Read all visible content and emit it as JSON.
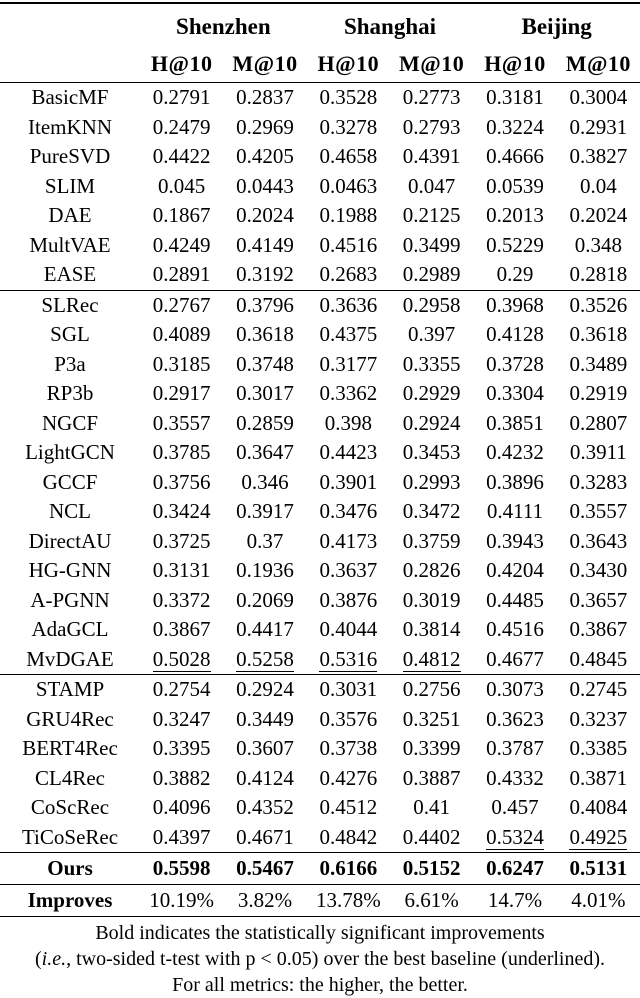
{
  "header": {
    "city_groups": [
      "Shenzhen",
      "Shanghai",
      "Beijing"
    ],
    "metrics": [
      "H@10",
      "M@10",
      "H@10",
      "M@10",
      "H@10",
      "M@10"
    ]
  },
  "table": {
    "groups": [
      {
        "rows": [
          {
            "label": "BasicMF",
            "values": [
              "0.2791",
              "0.2837",
              "0.3528",
              "0.2773",
              "0.3181",
              "0.3004"
            ],
            "underline": []
          },
          {
            "label": "ItemKNN",
            "values": [
              "0.2479",
              "0.2969",
              "0.3278",
              "0.2793",
              "0.3224",
              "0.2931"
            ],
            "underline": []
          },
          {
            "label": "PureSVD",
            "values": [
              "0.4422",
              "0.4205",
              "0.4658",
              "0.4391",
              "0.4666",
              "0.3827"
            ],
            "underline": []
          },
          {
            "label": "SLIM",
            "values": [
              "0.045",
              "0.0443",
              "0.0463",
              "0.047",
              "0.0539",
              "0.04"
            ],
            "underline": []
          },
          {
            "label": "DAE",
            "values": [
              "0.1867",
              "0.2024",
              "0.1988",
              "0.2125",
              "0.2013",
              "0.2024"
            ],
            "underline": []
          },
          {
            "label": "MultVAE",
            "values": [
              "0.4249",
              "0.4149",
              "0.4516",
              "0.3499",
              "0.5229",
              "0.348"
            ],
            "underline": []
          },
          {
            "label": "EASE",
            "values": [
              "0.2891",
              "0.3192",
              "0.2683",
              "0.2989",
              "0.29",
              "0.2818"
            ],
            "underline": []
          }
        ]
      },
      {
        "rows": [
          {
            "label": "SLRec",
            "values": [
              "0.2767",
              "0.3796",
              "0.3636",
              "0.2958",
              "0.3968",
              "0.3526"
            ],
            "underline": []
          },
          {
            "label": "SGL",
            "values": [
              "0.4089",
              "0.3618",
              "0.4375",
              "0.397",
              "0.4128",
              "0.3618"
            ],
            "underline": []
          },
          {
            "label": "P3a",
            "values": [
              "0.3185",
              "0.3748",
              "0.3177",
              "0.3355",
              "0.3728",
              "0.3489"
            ],
            "underline": []
          },
          {
            "label": "RP3b",
            "values": [
              "0.2917",
              "0.3017",
              "0.3362",
              "0.2929",
              "0.3304",
              "0.2919"
            ],
            "underline": []
          },
          {
            "label": "NGCF",
            "values": [
              "0.3557",
              "0.2859",
              "0.398",
              "0.2924",
              "0.3851",
              "0.2807"
            ],
            "underline": []
          },
          {
            "label": "LightGCN",
            "values": [
              "0.3785",
              "0.3647",
              "0.4423",
              "0.3453",
              "0.4232",
              "0.3911"
            ],
            "underline": []
          },
          {
            "label": "GCCF",
            "values": [
              "0.3756",
              "0.346",
              "0.3901",
              "0.2993",
              "0.3896",
              "0.3283"
            ],
            "underline": []
          },
          {
            "label": "NCL",
            "values": [
              "0.3424",
              "0.3917",
              "0.3476",
              "0.3472",
              "0.4111",
              "0.3557"
            ],
            "underline": []
          },
          {
            "label": "DirectAU",
            "values": [
              "0.3725",
              "0.37",
              "0.4173",
              "0.3759",
              "0.3943",
              "0.3643"
            ],
            "underline": []
          },
          {
            "label": "HG-GNN",
            "values": [
              "0.3131",
              "0.1936",
              "0.3637",
              "0.2826",
              "0.4204",
              "0.3430"
            ],
            "underline": []
          },
          {
            "label": "A-PGNN",
            "values": [
              "0.3372",
              "0.2069",
              "0.3876",
              "0.3019",
              "0.4485",
              "0.3657"
            ],
            "underline": []
          },
          {
            "label": "AdaGCL",
            "values": [
              "0.3867",
              "0.4417",
              "0.4044",
              "0.3814",
              "0.4516",
              "0.3867"
            ],
            "underline": []
          },
          {
            "label": "MvDGAE",
            "values": [
              "0.5028",
              "0.5258",
              "0.5316",
              "0.4812",
              "0.4677",
              "0.4845"
            ],
            "underline": [
              0,
              1,
              2,
              3
            ]
          }
        ]
      },
      {
        "rows": [
          {
            "label": "STAMP",
            "values": [
              "0.2754",
              "0.2924",
              "0.3031",
              "0.2756",
              "0.3073",
              "0.2745"
            ],
            "underline": []
          },
          {
            "label": "GRU4Rec",
            "values": [
              "0.3247",
              "0.3449",
              "0.3576",
              "0.3251",
              "0.3623",
              "0.3237"
            ],
            "underline": []
          },
          {
            "label": "BERT4Rec",
            "values": [
              "0.3395",
              "0.3607",
              "0.3738",
              "0.3399",
              "0.3787",
              "0.3385"
            ],
            "underline": []
          },
          {
            "label": "CL4Rec",
            "values": [
              "0.3882",
              "0.4124",
              "0.4276",
              "0.3887",
              "0.4332",
              "0.3871"
            ],
            "underline": []
          },
          {
            "label": "CoScRec",
            "values": [
              "0.4096",
              "0.4352",
              "0.4512",
              "0.41",
              "0.457",
              "0.4084"
            ],
            "underline": []
          },
          {
            "label": "TiCoSeRec",
            "values": [
              "0.4397",
              "0.4671",
              "0.4842",
              "0.4402",
              "0.5324",
              "0.4925"
            ],
            "underline": [
              4,
              5
            ]
          }
        ]
      }
    ],
    "ours": {
      "label": "Ours",
      "values": [
        "0.5598",
        "0.5467",
        "0.6166",
        "0.5152",
        "0.6247",
        "0.5131"
      ]
    },
    "improves": {
      "label": "Improves",
      "values": [
        "10.19%",
        "3.82%",
        "13.78%",
        "6.61%",
        "14.7%",
        "4.01%"
      ]
    }
  },
  "footnote": {
    "line1": "Bold indicates the statistically significant improvements",
    "line2_prefix": "(",
    "line2_italic": "i.e.,",
    "line2_rest": " two-sided t-test with p < 0.05) over the best baseline (underlined).",
    "line3": "For all metrics: the higher, the better."
  }
}
